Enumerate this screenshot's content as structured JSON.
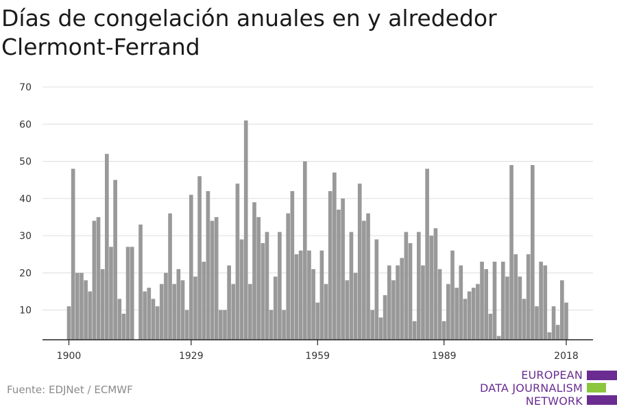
{
  "title": "Días de congelación anuales en y alrededor Clermont-Ferrand",
  "source": "Fuente: EDJNet / ECMWF",
  "logo": {
    "line1": "EUROPEAN",
    "line2": "DATA JOURNALISM",
    "line3": "NETWORK"
  },
  "colors": {
    "bar": "#999999",
    "grid": "#dddddd",
    "axis": "#222222",
    "logo_purple": "#6a2c91",
    "logo_green": "#8cc63f"
  },
  "chart_data": {
    "type": "bar",
    "title": "Días de congelación anuales en y alrededor Clermont-Ferrand",
    "xlabel": "",
    "ylabel": "",
    "ylim": [
      2,
      70
    ],
    "yticks": [
      10,
      20,
      30,
      40,
      50,
      60,
      70
    ],
    "xticks": [
      1900,
      1929,
      1959,
      1989,
      2018
    ],
    "grid": true,
    "years": [
      1900,
      1901,
      1902,
      1903,
      1904,
      1905,
      1906,
      1907,
      1908,
      1909,
      1910,
      1911,
      1912,
      1913,
      1914,
      1915,
      1916,
      1917,
      1918,
      1919,
      1920,
      1921,
      1922,
      1923,
      1924,
      1925,
      1926,
      1927,
      1928,
      1929,
      1930,
      1931,
      1932,
      1933,
      1934,
      1935,
      1936,
      1937,
      1938,
      1939,
      1940,
      1941,
      1942,
      1943,
      1944,
      1945,
      1946,
      1947,
      1948,
      1949,
      1950,
      1951,
      1952,
      1953,
      1954,
      1955,
      1956,
      1957,
      1958,
      1959,
      1960,
      1961,
      1962,
      1963,
      1964,
      1965,
      1966,
      1967,
      1968,
      1969,
      1970,
      1971,
      1972,
      1973,
      1974,
      1975,
      1976,
      1977,
      1978,
      1979,
      1980,
      1981,
      1982,
      1983,
      1984,
      1985,
      1986,
      1987,
      1988,
      1989,
      1990,
      1991,
      1992,
      1993,
      1994,
      1995,
      1996,
      1997,
      1998,
      1999,
      2000,
      2001,
      2002,
      2003,
      2004,
      2005,
      2006,
      2007,
      2008,
      2009,
      2010,
      2011,
      2012,
      2013,
      2014,
      2015,
      2016,
      2017,
      2018
    ],
    "values": [
      11,
      48,
      20,
      20,
      18,
      15,
      34,
      35,
      21,
      52,
      27,
      45,
      13,
      9,
      27,
      27,
      null,
      33,
      15,
      16,
      13,
      11,
      17,
      20,
      36,
      17,
      21,
      18,
      10,
      41,
      19,
      46,
      23,
      42,
      34,
      35,
      10,
      10,
      22,
      17,
      44,
      29,
      61,
      17,
      39,
      35,
      28,
      31,
      10,
      19,
      31,
      10,
      36,
      42,
      25,
      26,
      50,
      26,
      21,
      12,
      26,
      17,
      42,
      47,
      37,
      40,
      18,
      31,
      20,
      44,
      34,
      36,
      10,
      29,
      8,
      14,
      22,
      18,
      22,
      24,
      31,
      28,
      7,
      31,
      22,
      48,
      30,
      32,
      21,
      7,
      17,
      26,
      16,
      22,
      13,
      15,
      16,
      17,
      23,
      21,
      9,
      23,
      3,
      23,
      19,
      49,
      25,
      19,
      13,
      25,
      49,
      11,
      23,
      22,
      4,
      11,
      6,
      18,
      12
    ]
  }
}
